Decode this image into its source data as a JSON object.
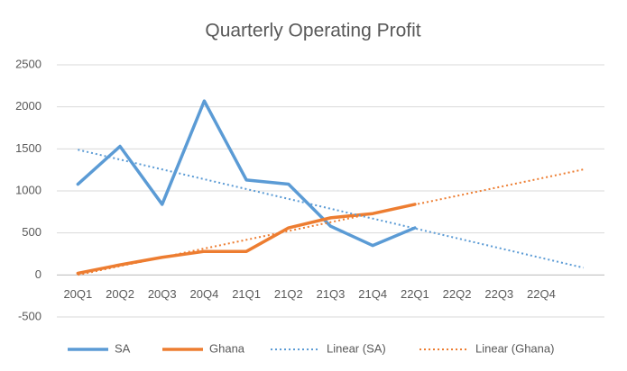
{
  "chart_data": {
    "type": "line",
    "title": "Quarterly Operating Profit",
    "categories": [
      "20Q1",
      "20Q2",
      "20Q3",
      "20Q4",
      "21Q1",
      "21Q2",
      "21Q3",
      "21Q4",
      "22Q1",
      "22Q2",
      "22Q3",
      "22Q4",
      null
    ],
    "series": [
      {
        "name": "SA",
        "color": "#5b9bd5",
        "style": "solid",
        "values": [
          1080,
          1530,
          840,
          2070,
          1130,
          1080,
          580,
          350,
          560,
          null,
          null,
          null,
          null
        ]
      },
      {
        "name": "Ghana",
        "color": "#ed7d31",
        "style": "solid",
        "values": [
          20,
          120,
          210,
          280,
          280,
          560,
          680,
          730,
          840,
          null,
          null,
          null,
          null
        ]
      },
      {
        "name": "Linear (SA)",
        "color": "#5b9bd5",
        "style": "dotted",
        "values": [
          1490,
          1373,
          1256,
          1139,
          1022,
          905,
          788,
          671,
          554,
          437,
          320,
          203,
          86
        ]
      },
      {
        "name": "Linear (Ghana)",
        "color": "#ed7d31",
        "style": "dotted",
        "values": [
          0,
          105,
          209,
          314,
          418,
          523,
          628,
          732,
          837,
          941,
          1046,
          1150,
          1255
        ]
      }
    ],
    "ylim": [
      -500,
      2500
    ],
    "yticks": [
      -500,
      0,
      500,
      1000,
      1500,
      2000,
      2500
    ],
    "grid": true,
    "legend": "bottom"
  }
}
